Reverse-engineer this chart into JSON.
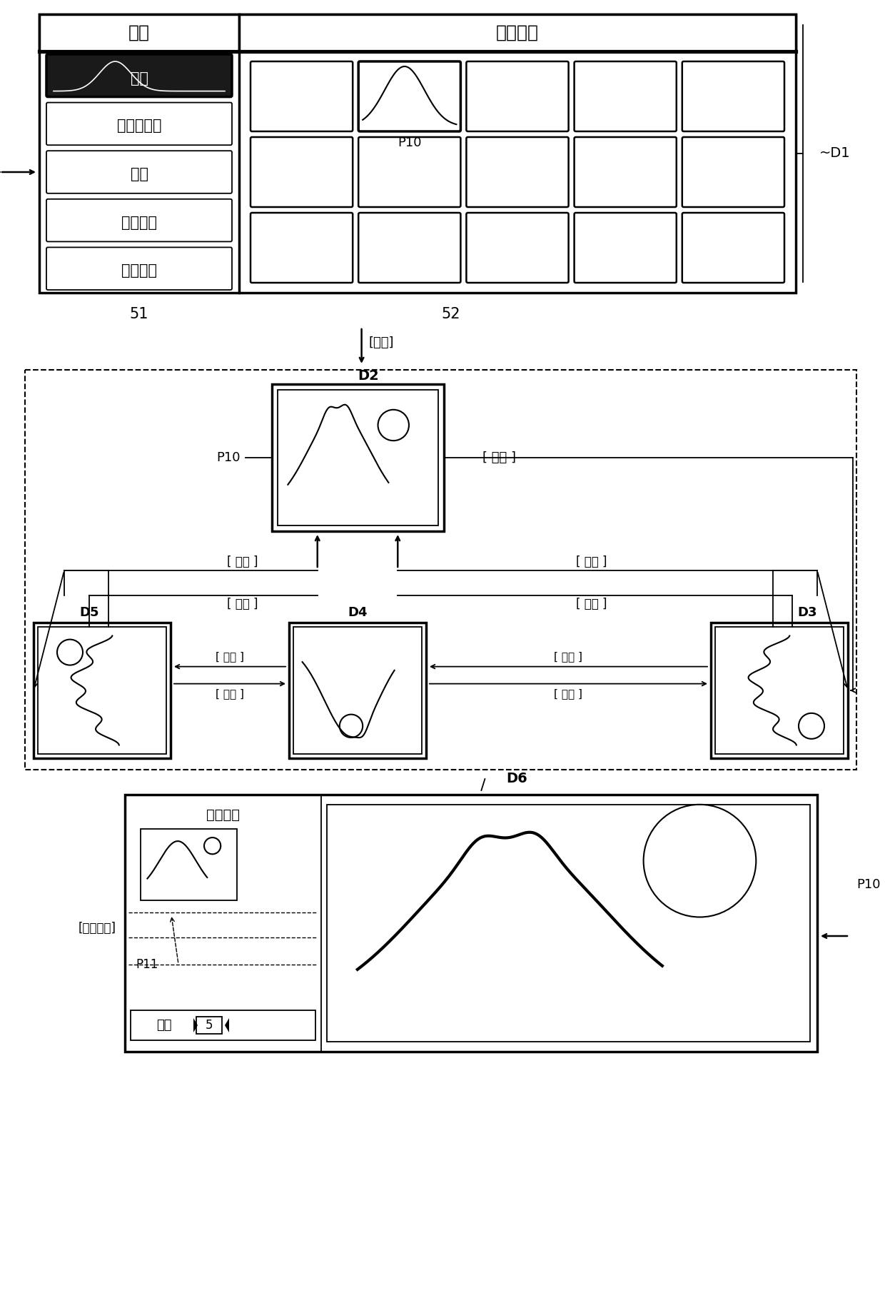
{
  "bg_color": "#ffffff",
  "label_menu": "菜单",
  "label_photo": "照片索引",
  "menu_items": [
    "卡片",
    "幻灯片放映",
    "储存",
    "打印监视",
    "浏览结束"
  ],
  "label_D1": "D1",
  "label_51": "51",
  "label_52": "52",
  "label_P10_top": "P10",
  "label_D2": "D2",
  "label_P10_mid": "P10",
  "label_print": "[ 打印 ]",
  "label_left1": "[ 左旋 ]",
  "label_left2": "[ 左旋 ]",
  "label_right1": "[ 右旋 ]",
  "label_right2": "[ 右旋 ]",
  "label_enter": "[进入]",
  "label_D3": "D3",
  "label_D4": "D4",
  "label_D5": "D5",
  "label_right_btn1": "[ 右旋 ]",
  "label_right_btn2": "[ 右旋 ]",
  "label_left_btn1": "[ 左旋 ]",
  "label_left_btn2": "[ 左旋 ]",
  "label_D6": "D6",
  "label_P10_bot": "P10",
  "label_P11": "P11",
  "label_print_settings": "印刷设定",
  "label_print_exec": "[印刷执行]",
  "label_sheets": "张数",
  "label_5": "5"
}
